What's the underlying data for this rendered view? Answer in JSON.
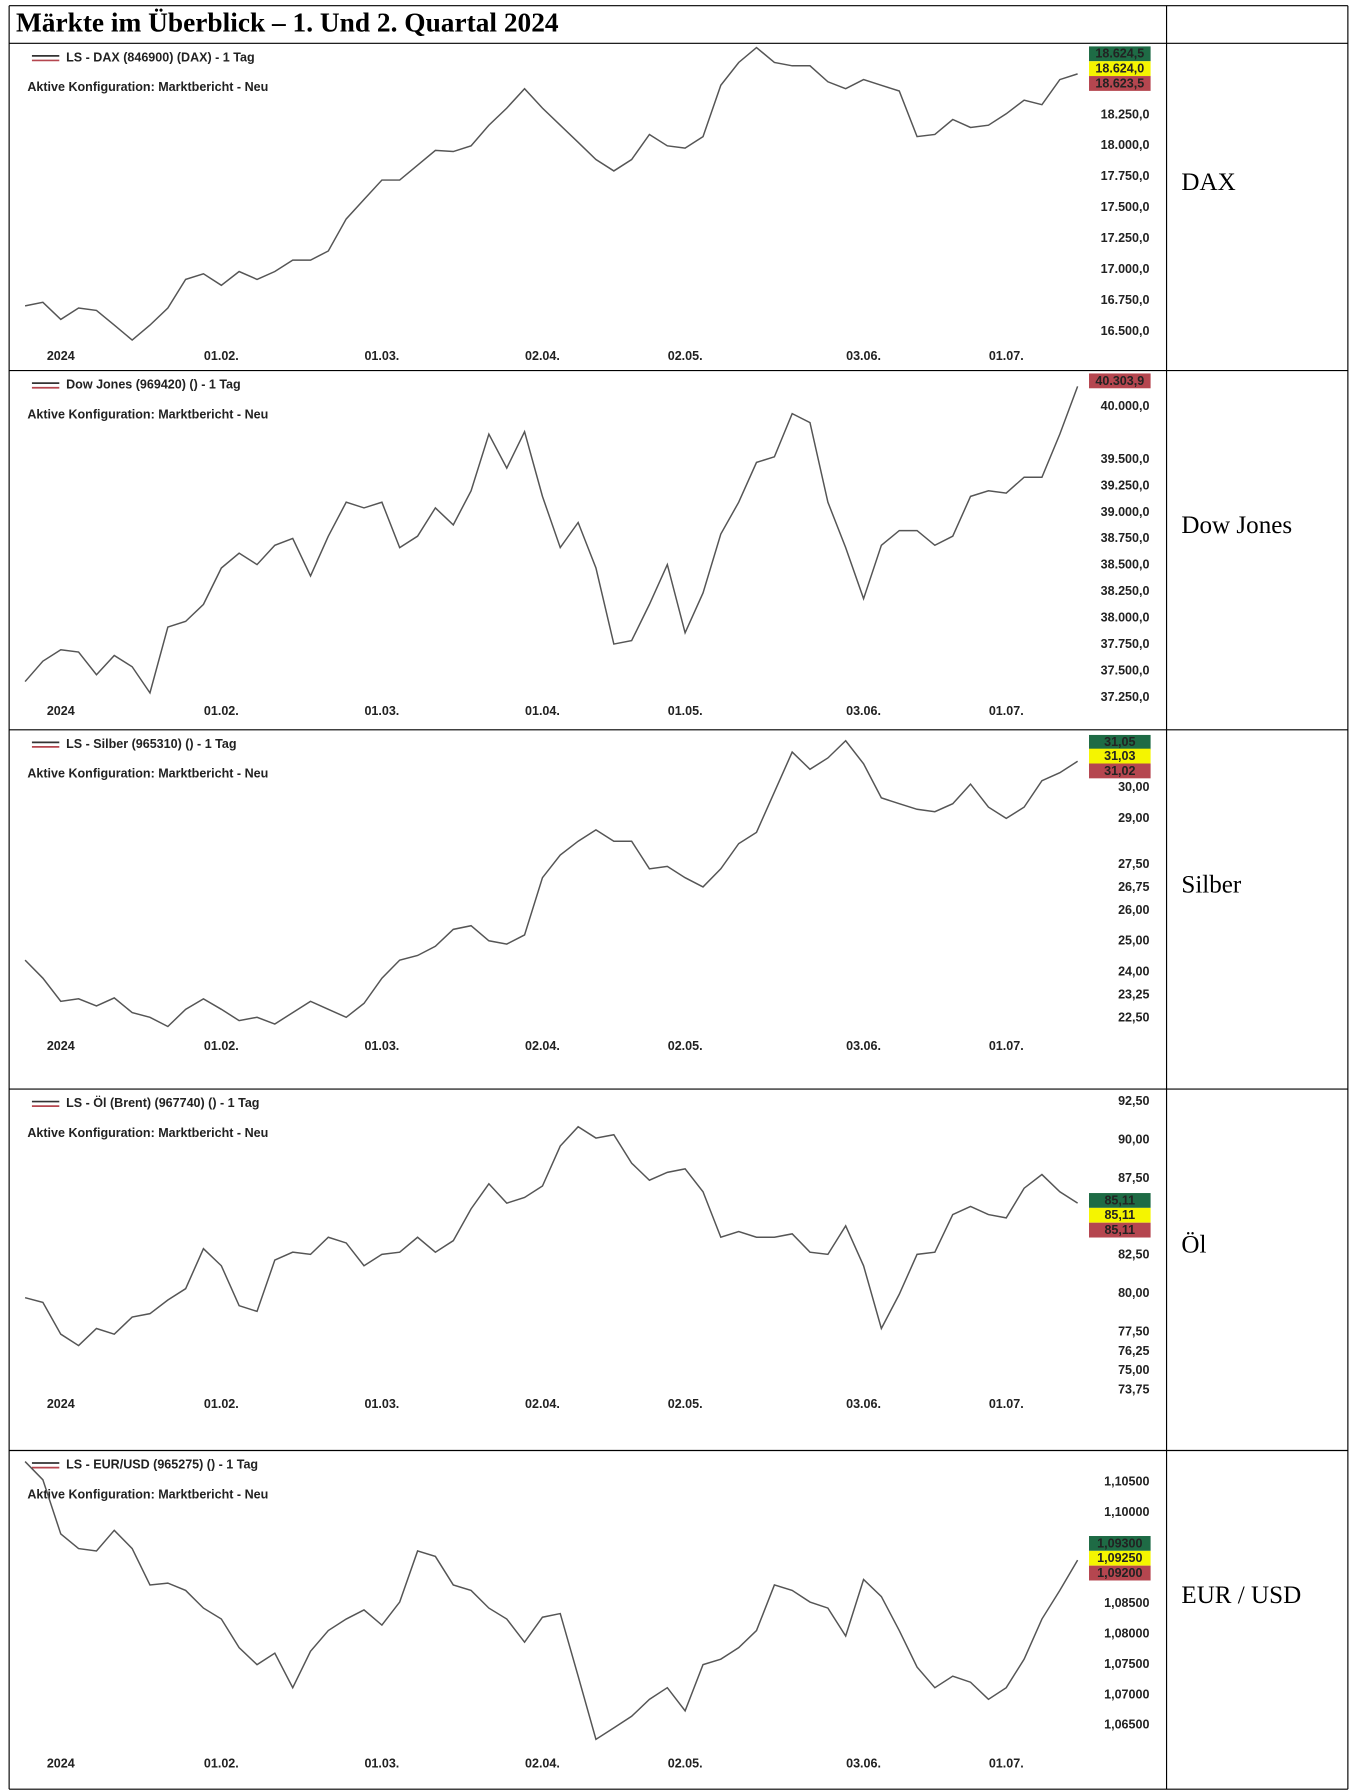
{
  "title": "Märkte im Überblick – 1. Und 2. Quartal 2024",
  "row_labels": [
    "DAX",
    "Dow Jones",
    "Silber",
    "Öl",
    "EUR / USD"
  ],
  "chart_data": [
    {
      "type": "line",
      "title": "LS - DAX (846900) (DAX) - 1 Tag",
      "subtitle": "Aktive Konfiguration: Marktbericht - Neu",
      "color": "#555555",
      "categories": [
        null,
        null,
        "2024",
        null,
        null,
        null,
        null,
        null,
        null,
        null,
        null,
        "01.02.",
        null,
        null,
        null,
        null,
        null,
        null,
        null,
        null,
        "01.03.",
        null,
        null,
        null,
        null,
        null,
        null,
        null,
        null,
        "02.04.",
        null,
        null,
        null,
        null,
        null,
        null,
        null,
        "02.05.",
        null,
        null,
        null,
        null,
        null,
        null,
        null,
        null,
        null,
        "03.06.",
        null,
        null,
        null,
        null,
        null,
        null,
        null,
        "01.07.",
        null,
        null,
        null,
        null
      ],
      "values": [
        16709,
        16737,
        16599,
        16691,
        16672,
        16553,
        16433,
        16553,
        16691,
        16922,
        16968,
        16875,
        16986,
        16922,
        16986,
        17078,
        17078,
        17152,
        17410,
        17567,
        17724,
        17724,
        17844,
        17964,
        17955,
        18001,
        18167,
        18305,
        18462,
        18305,
        18167,
        18029,
        17890,
        17798,
        17890,
        18093,
        18001,
        17982,
        18075,
        18490,
        18674,
        18794,
        18674,
        18647,
        18647,
        18518,
        18462,
        18536,
        18490,
        18444,
        18075,
        18093,
        18213,
        18149,
        18167,
        18259,
        18370,
        18333,
        18536,
        18582
      ],
      "ylim": [
        16370,
        18810
      ],
      "yticks": [
        {
          "value": 16500,
          "label": "16.500,0"
        },
        {
          "value": 16750,
          "label": "16.750,0"
        },
        {
          "value": 17000,
          "label": "17.000,0"
        },
        {
          "value": 17250,
          "label": "17.250,0"
        },
        {
          "value": 17500,
          "label": "17.500,0"
        },
        {
          "value": 17750,
          "label": "17.750,0"
        },
        {
          "value": 18000,
          "label": "18.000,0"
        },
        {
          "value": 18250,
          "label": "18.250,0"
        }
      ],
      "price_tags": [
        {
          "value": 18624.5,
          "label": "18.624,5",
          "color": "#1e6b45"
        },
        {
          "value": 18624.0,
          "label": "18.624,0",
          "color": "#f5f500"
        },
        {
          "value": 18623.5,
          "label": "18.623,5",
          "color": "#b5464f"
        }
      ]
    },
    {
      "type": "line",
      "title": "Dow Jones (969420) () - 1 Tag",
      "subtitle": "Aktive Konfiguration: Marktbericht - Neu",
      "color": "#555555",
      "categories": [
        null,
        null,
        "2024",
        null,
        null,
        null,
        null,
        null,
        null,
        null,
        null,
        "01.02.",
        null,
        null,
        null,
        null,
        null,
        null,
        null,
        null,
        "01.03.",
        null,
        null,
        null,
        null,
        null,
        null,
        null,
        null,
        "01.04.",
        null,
        null,
        null,
        null,
        null,
        null,
        null,
        "01.05.",
        null,
        null,
        null,
        null,
        null,
        null,
        null,
        null,
        null,
        "03.06.",
        null,
        null,
        null,
        null,
        null,
        null,
        null,
        "01.07.",
        null,
        null,
        null,
        null
      ],
      "values": [
        37401,
        37594,
        37702,
        37680,
        37465,
        37648,
        37541,
        37294,
        37916,
        37970,
        38131,
        38475,
        38615,
        38507,
        38690,
        38754,
        38400,
        38776,
        39098,
        39044,
        39098,
        38668,
        38776,
        39044,
        38883,
        39205,
        39742,
        39420,
        39764,
        39152,
        38668,
        38905,
        38475,
        37755,
        37788,
        38131,
        38507,
        37862,
        38239,
        38797,
        39098,
        39474,
        39527,
        39936,
        39850,
        39098,
        38668,
        38185,
        38690,
        38829,
        38829,
        38690,
        38776,
        39152,
        39205,
        39184,
        39334,
        39334,
        39742,
        40193
      ],
      "ylim": [
        37160,
        40310
      ],
      "yticks": [
        {
          "value": 37250,
          "label": "37.250,0"
        },
        {
          "value": 37500,
          "label": "37.500,0"
        },
        {
          "value": 37750,
          "label": "37.750,0"
        },
        {
          "value": 38000,
          "label": "38.000,0"
        },
        {
          "value": 38250,
          "label": "38.250,0"
        },
        {
          "value": 38500,
          "label": "38.500,0"
        },
        {
          "value": 38750,
          "label": "38.750,0"
        },
        {
          "value": 39000,
          "label": "39.000,0"
        },
        {
          "value": 39250,
          "label": "39.250,0"
        },
        {
          "value": 39500,
          "label": "39.500,0"
        },
        {
          "value": 40000,
          "label": "40.000,0"
        }
      ],
      "price_tags": [
        {
          "value": 40303.9,
          "label": "40.303,9",
          "color": "#b5464f"
        }
      ]
    },
    {
      "type": "line",
      "title": "LS - Silber (965310) () - 1 Tag",
      "subtitle": "Aktive Konfiguration: Marktbericht - Neu",
      "color": "#555555",
      "categories": [
        null,
        null,
        "2024",
        null,
        null,
        null,
        null,
        null,
        null,
        null,
        null,
        "01.02.",
        null,
        null,
        null,
        null,
        null,
        null,
        null,
        null,
        "01.03.",
        null,
        null,
        null,
        null,
        null,
        null,
        null,
        null,
        "02.04.",
        null,
        null,
        null,
        null,
        null,
        null,
        null,
        "02.05.",
        null,
        null,
        null,
        null,
        null,
        null,
        null,
        null,
        null,
        "03.06.",
        null,
        null,
        null,
        null,
        null,
        null,
        null,
        "01.07.",
        null,
        null,
        null,
        null
      ],
      "values": [
        24.39,
        23.8,
        23.05,
        23.13,
        22.9,
        23.16,
        22.68,
        22.53,
        22.23,
        22.79,
        23.13,
        22.79,
        22.42,
        22.53,
        22.31,
        22.68,
        23.05,
        22.79,
        22.53,
        22.98,
        23.8,
        24.39,
        24.54,
        24.84,
        25.39,
        25.51,
        25.02,
        24.91,
        25.21,
        27.07,
        27.81,
        28.26,
        28.63,
        28.26,
        28.26,
        27.36,
        27.44,
        27.07,
        26.77,
        27.36,
        28.18,
        28.55,
        29.86,
        31.16,
        30.6,
        30.97,
        31.53,
        30.78,
        29.67,
        29.48,
        29.3,
        29.22,
        29.48,
        30.12,
        29.37,
        29.0,
        29.37,
        30.23,
        30.49,
        30.86
      ],
      "ylim": [
        22.05,
        31.7
      ],
      "yticks": [
        {
          "value": 22.5,
          "label": "22,50"
        },
        {
          "value": 23.25,
          "label": "23,25"
        },
        {
          "value": 24,
          "label": "24,00"
        },
        {
          "value": 25,
          "label": "25,00"
        },
        {
          "value": 26,
          "label": "26,00"
        },
        {
          "value": 26.75,
          "label": "26,75"
        },
        {
          "value": 27.5,
          "label": "27,50"
        },
        {
          "value": 29,
          "label": "29,00"
        },
        {
          "value": 30,
          "label": "30,00"
        }
      ],
      "price_tags": [
        {
          "value": 31.05,
          "label": "31,05",
          "color": "#1e6b45"
        },
        {
          "value": 31.03,
          "label": "31,03",
          "color": "#f5f500"
        },
        {
          "value": 31.02,
          "label": "31,02",
          "color": "#b5464f"
        }
      ]
    },
    {
      "type": "line",
      "title": "LS - Öl (Brent) (967740) () - 1 Tag",
      "subtitle": "Aktive Konfiguration: Marktbericht - Neu",
      "color": "#555555",
      "categories": [
        null,
        null,
        "2024",
        null,
        null,
        null,
        null,
        null,
        null,
        null,
        null,
        "01.02.",
        null,
        null,
        null,
        null,
        null,
        null,
        null,
        null,
        "01.03.",
        null,
        null,
        null,
        null,
        null,
        null,
        null,
        null,
        "02.04.",
        null,
        null,
        null,
        null,
        null,
        null,
        null,
        "02.05.",
        null,
        null,
        null,
        null,
        null,
        null,
        null,
        null,
        null,
        "03.06.",
        null,
        null,
        null,
        null,
        null,
        null,
        null,
        "01.07.",
        null,
        null,
        null,
        null
      ],
      "values": [
        79.75,
        79.45,
        77.38,
        76.64,
        77.75,
        77.38,
        78.49,
        78.71,
        79.6,
        80.34,
        82.94,
        81.83,
        79.23,
        78.86,
        82.2,
        82.71,
        82.57,
        83.68,
        83.31,
        81.83,
        82.57,
        82.71,
        83.68,
        82.71,
        83.46,
        85.53,
        87.16,
        85.9,
        86.27,
        87.01,
        89.61,
        90.87,
        90.13,
        90.35,
        88.5,
        87.39,
        87.9,
        88.13,
        86.64,
        83.68,
        84.05,
        83.68,
        83.68,
        83.9,
        82.71,
        82.57,
        84.42,
        81.83,
        77.75,
        79.97,
        82.57,
        82.71,
        85.16,
        85.68,
        85.16,
        84.94,
        86.87,
        87.76,
        86.64,
        85.9
      ],
      "ylim": [
        73.3,
        92.95
      ],
      "yticks": [
        {
          "value": 73.75,
          "label": "73,75"
        },
        {
          "value": 75,
          "label": "75,00"
        },
        {
          "value": 76.25,
          "label": "76,25"
        },
        {
          "value": 77.5,
          "label": "77,50"
        },
        {
          "value": 80,
          "label": "80,00"
        },
        {
          "value": 82.5,
          "label": "82,50"
        },
        {
          "value": 87.5,
          "label": "87,50"
        },
        {
          "value": 90,
          "label": "90,00"
        },
        {
          "value": 92.5,
          "label": "92,50"
        }
      ],
      "price_tags": [
        {
          "value": 85.11,
          "label": "85,11",
          "color": "#1e6b45"
        },
        {
          "value": 85.11,
          "label": "85,11",
          "color": "#f5f500"
        },
        {
          "value": 85.11,
          "label": "85,11",
          "color": "#b5464f"
        }
      ]
    },
    {
      "type": "line",
      "title": "LS - EUR/USD (965275) () - 1 Tag",
      "subtitle": "Aktive Konfiguration: Marktbericht - Neu",
      "color": "#555555",
      "categories": [
        null,
        null,
        "2024",
        null,
        null,
        null,
        null,
        null,
        null,
        null,
        null,
        "01.02.",
        null,
        null,
        null,
        null,
        null,
        null,
        null,
        null,
        "01.03.",
        null,
        null,
        null,
        null,
        null,
        null,
        null,
        null,
        "02.04.",
        null,
        null,
        null,
        null,
        null,
        null,
        null,
        "02.05.",
        null,
        null,
        null,
        null,
        null,
        null,
        null,
        null,
        null,
        "03.06.",
        null,
        null,
        null,
        null,
        null,
        null,
        null,
        "01.07.",
        null,
        null,
        null,
        null
      ],
      "values": [
        1.1084,
        1.1054,
        1.0965,
        1.0941,
        1.0937,
        1.0971,
        1.0941,
        1.0881,
        1.0884,
        1.0872,
        1.0843,
        1.0825,
        1.0778,
        1.075,
        1.0769,
        1.0712,
        1.0772,
        1.0806,
        1.0825,
        1.084,
        1.0815,
        1.0853,
        1.0937,
        1.0928,
        1.0881,
        1.0872,
        1.0843,
        1.0825,
        1.0787,
        1.0828,
        1.0834,
        1.0731,
        1.0627,
        1.0646,
        1.0665,
        1.0693,
        1.0712,
        1.0674,
        1.075,
        1.0759,
        1.0778,
        1.0806,
        1.0881,
        1.0872,
        1.0853,
        1.0843,
        1.0797,
        1.089,
        1.0862,
        1.0806,
        1.0746,
        1.0712,
        1.0731,
        1.0721,
        1.0693,
        1.0712,
        1.0759,
        1.0825,
        1.0872,
        1.0922
      ],
      "ylim": [
        1.0562,
        1.1091
      ],
      "yticks": [
        {
          "value": 1.065,
          "label": "1,06500"
        },
        {
          "value": 1.07,
          "label": "1,07000"
        },
        {
          "value": 1.075,
          "label": "1,07500"
        },
        {
          "value": 1.08,
          "label": "1,08000"
        },
        {
          "value": 1.085,
          "label": "1,08500"
        },
        {
          "value": 1.1,
          "label": "1,10000"
        },
        {
          "value": 1.105,
          "label": "1,10500"
        }
      ],
      "price_tags": [
        {
          "value": 1.093,
          "label": "1,09300",
          "color": "#1e6b45"
        },
        {
          "value": 1.0925,
          "label": "1,09250",
          "color": "#f5f500"
        },
        {
          "value": 1.092,
          "label": "1,09200",
          "color": "#b5464f"
        }
      ]
    }
  ]
}
